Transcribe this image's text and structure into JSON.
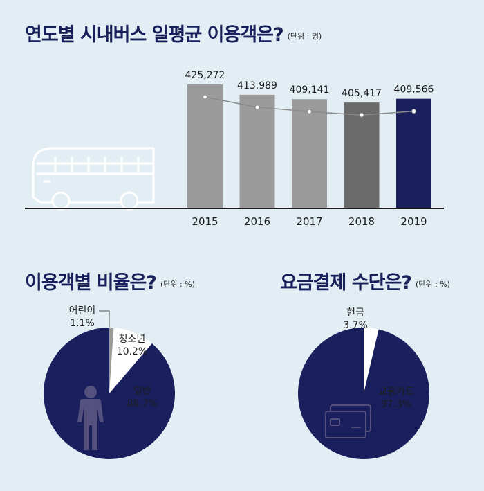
{
  "chart_data": [
    {
      "type": "bar",
      "title": "연도별 시내버스 일평균 이용객은?",
      "unit": "(단위 : 명)",
      "categories": [
        "2015",
        "2016",
        "2017",
        "2018",
        "2019"
      ],
      "values": [
        425272,
        413989,
        409141,
        405417,
        409566
      ],
      "value_labels": [
        "425,272",
        "413,989",
        "409,141",
        "405,417",
        "409,566"
      ],
      "colors": [
        "#9b9b9b",
        "#9b9b9b",
        "#9b9b9b",
        "#6b6b6b",
        "#1a1f5e"
      ],
      "trend_line": true,
      "grid": false
    },
    {
      "type": "pie",
      "title": "이용객별 비율은?",
      "unit": "(단위 : %)",
      "slices": [
        {
          "label": "어린이",
          "value": 1.1,
          "value_label": "1.1%",
          "color": "#9b9b9b"
        },
        {
          "label": "청소년",
          "value": 10.2,
          "value_label": "10.2%",
          "color": "#ffffff"
        },
        {
          "label": "일반",
          "value": 88.7,
          "value_label": "88.7%",
          "color": "#1a1f5e"
        }
      ],
      "icon": "person-icon"
    },
    {
      "type": "pie",
      "title": "요금결제 수단은?",
      "unit": "(단위 : %)",
      "slices": [
        {
          "label": "현금",
          "value": 3.7,
          "value_label": "3.7%",
          "color": "#ffffff"
        },
        {
          "label": "교통카드",
          "value": 97.3,
          "value_label": "97.3%",
          "color": "#1a1f5e"
        }
      ],
      "icon": "card-icon"
    }
  ],
  "decor": {
    "main_icon": "bus-icon",
    "accent": "#1a1f5e",
    "background": "#e3eef4"
  }
}
